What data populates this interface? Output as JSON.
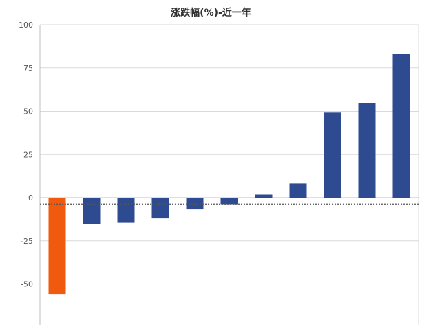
{
  "chart_data": {
    "type": "bar",
    "title": "涨跌幅(%)-近一年",
    "xlabel": "",
    "ylabel": "",
    "ylim": [
      -70,
      100
    ],
    "yticks": [
      100,
      75,
      50,
      25,
      0,
      -25,
      -50
    ],
    "grid": true,
    "reference_line": -3.7,
    "values": [
      -55.8,
      -15.4,
      -14.6,
      -12.0,
      -6.8,
      -3.8,
      1.8,
      8.2,
      49.3,
      54.8,
      83.0
    ],
    "highlight_index": 0,
    "colors": {
      "highlight": "#f05a0e",
      "bar": "#2e4a91",
      "grid": "#d9d9d9",
      "axis": "#bfbfbf",
      "reference": "#555555"
    }
  }
}
